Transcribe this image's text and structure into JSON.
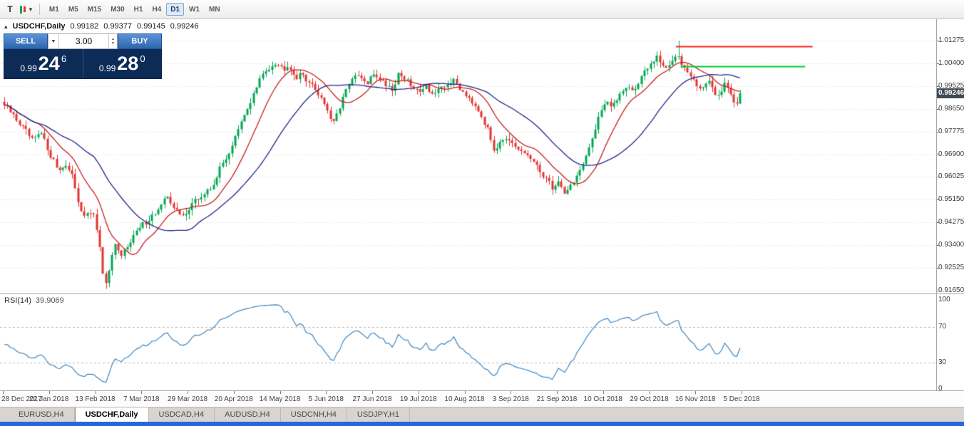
{
  "icons": {
    "collapse": "▴",
    "dropdown": "▼",
    "tool_t": "T",
    "spin_up": "▲",
    "spin_down": "▼"
  },
  "toolbar": {
    "timeframes": [
      "M1",
      "M5",
      "M15",
      "M30",
      "H1",
      "H4",
      "D1",
      "W1",
      "MN"
    ],
    "active_timeframe": "D1"
  },
  "chart": {
    "title": "USDCHF,Daily",
    "ohlc": {
      "open": "0.99182",
      "high": "0.99377",
      "low": "0.99145",
      "close": "0.99246"
    },
    "price_badge": "0.99246"
  },
  "trade_panel": {
    "sell_label": "SELL",
    "buy_label": "BUY",
    "lot": "3.00",
    "sell_price": {
      "prefix": "0.99",
      "big": "24",
      "sup": "6"
    },
    "buy_price": {
      "prefix": "0.99",
      "big": "28",
      "sup": "0"
    }
  },
  "chart_data": {
    "type": "candlestick",
    "symbol": "USDCHF",
    "timeframe": "Daily",
    "title": "USDCHF,Daily 0.99182 0.99377 0.99145 0.99246",
    "last_close": 0.99246,
    "candle_count": 240,
    "y_ticks": [
      "1.01275",
      "1.00400",
      "0.99525",
      "0.98650",
      "0.97775",
      "0.96900",
      "0.96025",
      "0.95150",
      "0.94275",
      "0.93400",
      "0.92525",
      "0.91650"
    ],
    "x_ticks": [
      "28 Dec 2017",
      "22 Jan 2018",
      "13 Feb 2018",
      "7 Mar 2018",
      "29 Mar 2018",
      "20 Apr 2018",
      "14 May 2018",
      "5 Jun 2018",
      "27 Jun 2018",
      "19 Jul 2018",
      "10 Aug 2018",
      "3 Sep 2018",
      "21 Sep 2018",
      "10 Oct 2018",
      "29 Oct 2018",
      "16 Nov 2018",
      "5 Dec 2018"
    ],
    "price_keypoints": [
      [
        0,
        0.988
      ],
      [
        0.018,
        0.982
      ],
      [
        0.038,
        0.9742
      ],
      [
        0.05,
        0.9768
      ],
      [
        0.062,
        0.9692
      ],
      [
        0.074,
        0.9627
      ],
      [
        0.082,
        0.9655
      ],
      [
        0.094,
        0.9592
      ],
      [
        0.103,
        0.9482
      ],
      [
        0.112,
        0.9448
      ],
      [
        0.119,
        0.9472
      ],
      [
        0.127,
        0.939
      ],
      [
        0.134,
        0.9218
      ],
      [
        0.14,
        0.9196
      ],
      [
        0.149,
        0.9342
      ],
      [
        0.158,
        0.929
      ],
      [
        0.17,
        0.9356
      ],
      [
        0.186,
        0.9412
      ],
      [
        0.2,
        0.9452
      ],
      [
        0.212,
        0.9482
      ],
      [
        0.222,
        0.9532
      ],
      [
        0.231,
        0.9482
      ],
      [
        0.241,
        0.9446
      ],
      [
        0.256,
        0.9502
      ],
      [
        0.27,
        0.9532
      ],
      [
        0.281,
        0.9558
      ],
      [
        0.291,
        0.9622
      ],
      [
        0.306,
        0.9702
      ],
      [
        0.321,
        0.9802
      ],
      [
        0.336,
        0.9902
      ],
      [
        0.349,
        0.9986
      ],
      [
        0.361,
        1.003
      ],
      [
        0.369,
        1.0046
      ],
      [
        0.379,
        1.0018
      ],
      [
        0.386,
        1.004
      ],
      [
        0.396,
        0.9986
      ],
      [
        0.406,
        0.9996
      ],
      [
        0.419,
        0.995
      ],
      [
        0.429,
        0.9918
      ],
      [
        0.439,
        0.9868
      ],
      [
        0.445,
        0.9812
      ],
      [
        0.453,
        0.9842
      ],
      [
        0.461,
        0.9906
      ],
      [
        0.469,
        0.9972
      ],
      [
        0.481,
        0.999
      ],
      [
        0.493,
        0.9958
      ],
      [
        0.503,
        1.0002
      ],
      [
        0.516,
        0.9966
      ],
      [
        0.529,
        0.994
      ],
      [
        0.536,
        1.0006
      ],
      [
        0.546,
        0.9976
      ],
      [
        0.559,
        0.993
      ],
      [
        0.573,
        0.9956
      ],
      [
        0.583,
        0.992
      ],
      [
        0.596,
        0.9942
      ],
      [
        0.609,
        0.9976
      ],
      [
        0.621,
        0.994
      ],
      [
        0.633,
        0.9908
      ],
      [
        0.646,
        0.9858
      ],
      [
        0.656,
        0.979
      ],
      [
        0.666,
        0.9706
      ],
      [
        0.676,
        0.9756
      ],
      [
        0.689,
        0.9726
      ],
      [
        0.701,
        0.97
      ],
      [
        0.713,
        0.9686
      ],
      [
        0.723,
        0.964
      ],
      [
        0.736,
        0.96
      ],
      [
        0.746,
        0.9556
      ],
      [
        0.753,
        0.9586
      ],
      [
        0.761,
        0.9544
      ],
      [
        0.771,
        0.9572
      ],
      [
        0.779,
        0.9612
      ],
      [
        0.789,
        0.9656
      ],
      [
        0.799,
        0.9752
      ],
      [
        0.809,
        0.9852
      ],
      [
        0.819,
        0.9902
      ],
      [
        0.826,
        0.9862
      ],
      [
        0.836,
        0.9922
      ],
      [
        0.846,
        0.9956
      ],
      [
        0.856,
        0.993
      ],
      [
        0.866,
        0.9992
      ],
      [
        0.876,
        1.0022
      ],
      [
        0.886,
        1.0062
      ],
      [
        0.894,
        1.0036
      ],
      [
        0.901,
        1.0012
      ],
      [
        0.909,
        1.0066
      ],
      [
        0.916,
        1.0082
      ],
      [
        0.923,
        1.0022
      ],
      [
        0.931,
        1.0
      ],
      [
        0.939,
        0.996
      ],
      [
        0.949,
        0.9944
      ],
      [
        0.956,
        0.9972
      ],
      [
        0.963,
        0.9936
      ],
      [
        0.971,
        0.9914
      ],
      [
        0.979,
        0.9962
      ],
      [
        0.987,
        0.9934
      ],
      [
        0.994,
        0.9878
      ],
      [
        1,
        0.99246
      ]
    ],
    "wick_spikes": [
      {
        "t": 0.14,
        "low": 0.9172
      },
      {
        "t": 0.916,
        "high": 1.0127
      }
    ],
    "moving_averages": [
      {
        "name": "fast-ma",
        "period": 12,
        "color": "#C81E1E"
      },
      {
        "name": "slow-ma",
        "period": 30,
        "color": "#26268C"
      }
    ],
    "hlines": [
      {
        "price": 1.0105,
        "from": 0.722,
        "to": 0.868,
        "color": "#FF2020"
      },
      {
        "price": 1.003,
        "from": 0.727,
        "to": 0.86,
        "color": "#00CC33"
      }
    ],
    "rsi": {
      "label": "RSI(14)",
      "value": "39.9069",
      "period": 14,
      "levels": [
        30,
        70
      ],
      "scale": [
        0,
        30,
        70,
        100
      ],
      "color": "#3E86C0"
    },
    "colors": {
      "up": "#00A651",
      "down": "#E3342F",
      "grid": "#DCDCDC",
      "badge_bg": "#3F4A54",
      "panel_navy": "#0D2B57",
      "button_blue": "#2E66AD",
      "taskbar_blue": "#2866E0"
    }
  },
  "tabs": [
    {
      "label": "EURUSD,H4",
      "active": false
    },
    {
      "label": "USDCHF,Daily",
      "active": true
    },
    {
      "label": "USDCAD,H4",
      "active": false
    },
    {
      "label": "AUDUSD,H4",
      "active": false
    },
    {
      "label": "USDCNH,H4",
      "active": false
    },
    {
      "label": "USDJPY,H1",
      "active": false
    }
  ]
}
